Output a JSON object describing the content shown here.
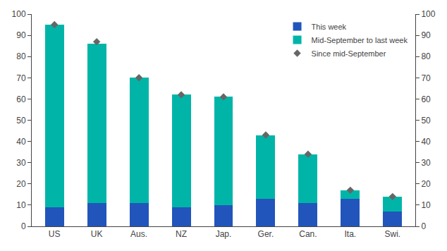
{
  "chart_data": {
    "type": "bar",
    "stacked": true,
    "categories": [
      "US",
      "UK",
      "Aus.",
      "NZ",
      "Jap.",
      "Ger.",
      "Can.",
      "Ita.",
      "Swi."
    ],
    "series": [
      {
        "name": "This week",
        "color": "#2255bb",
        "values": [
          9,
          11,
          11,
          9,
          10,
          13,
          11,
          13,
          7
        ]
      },
      {
        "name": "Mid-September to last week",
        "color": "#00b5a8",
        "values": [
          86,
          75,
          59,
          53,
          51,
          30,
          23,
          4,
          7
        ]
      },
      {
        "name": "Since mid-September",
        "type": "scatter",
        "marker": "diamond",
        "color": "#666666",
        "values": [
          95,
          87,
          70,
          62,
          61,
          43,
          34,
          17,
          14
        ]
      }
    ],
    "ylim": [
      0,
      100
    ],
    "yticks": [
      0,
      10,
      20,
      30,
      40,
      50,
      60,
      70,
      80,
      90,
      100
    ],
    "y2lim": [
      0,
      100
    ],
    "y2ticks": [
      0,
      10,
      20,
      30,
      40,
      50,
      60,
      70,
      80,
      90,
      100
    ],
    "grid": false,
    "legend": "upper right"
  }
}
